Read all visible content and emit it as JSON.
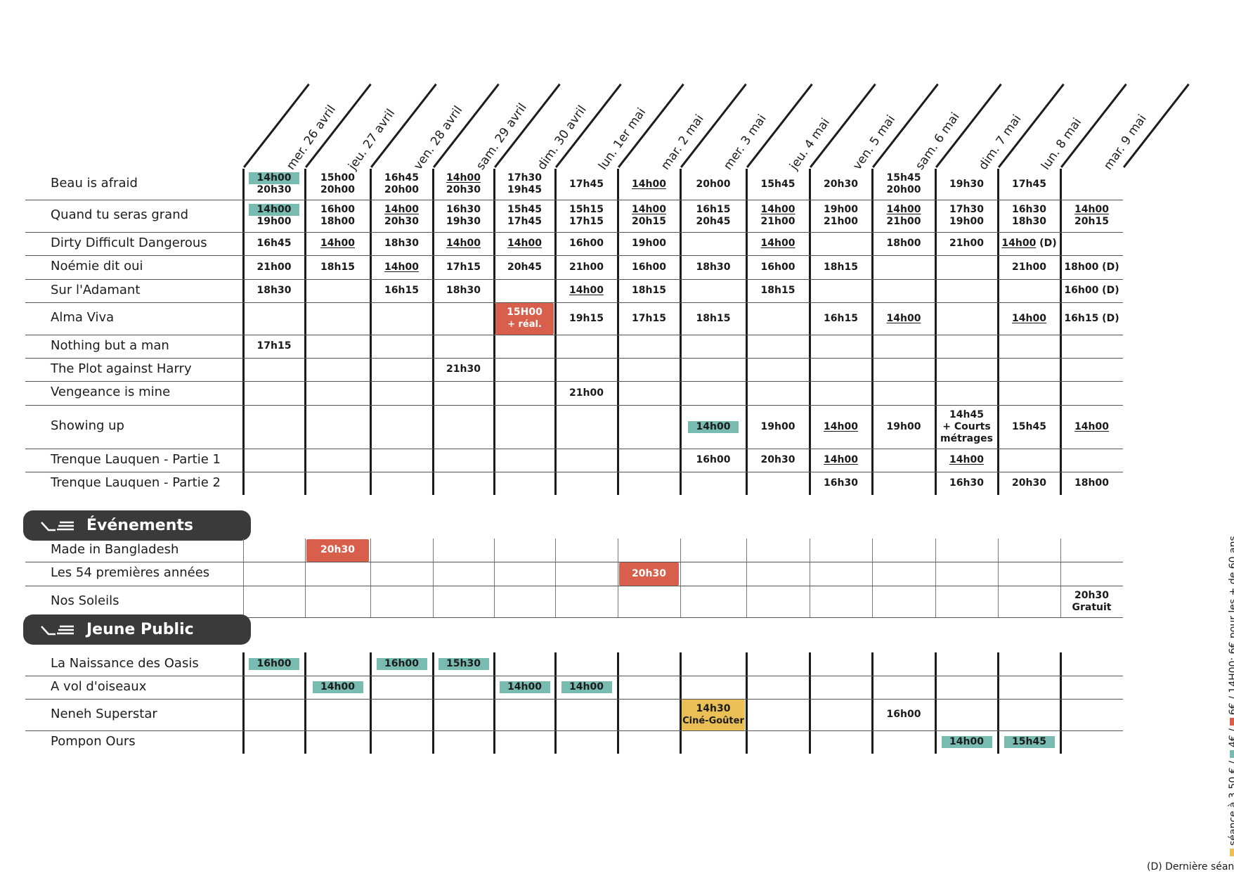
{
  "colors": {
    "teal": "#78bcb1",
    "red": "#d75f4c",
    "yellow": "#e9bf56",
    "dark": "#3a3a3a"
  },
  "dates": [
    "mer. 26 avril",
    "jeu. 27 avril",
    "ven. 28 avril",
    "sam. 29 avril",
    "dim. 30 avril",
    "lun. 1er mai",
    "mar. 2 mai",
    "mer. 3 mai",
    "jeu. 4 mai",
    "ven. 5 mai",
    "sam. 6 mai",
    "dim. 7 mai",
    "lun. 8 mai",
    "mar. 9 mai"
  ],
  "sections": [
    {
      "title": "",
      "icon": "",
      "films": [
        {
          "title": "Beau is afraid",
          "cells": [
            [
              {
                "t": "14h00",
                "hl": "teal"
              },
              {
                "t": "20h30"
              }
            ],
            [
              {
                "t": "15h00"
              },
              {
                "t": "20h00"
              }
            ],
            [
              {
                "t": "16h45"
              },
              {
                "t": "20h00"
              }
            ],
            [
              {
                "t": "14h00",
                "u": true
              },
              {
                "t": "20h30"
              }
            ],
            [
              {
                "t": "17h30"
              },
              {
                "t": "19h45"
              }
            ],
            [
              {
                "t": "17h45"
              }
            ],
            [
              {
                "t": "14h00",
                "u": true
              }
            ],
            [
              {
                "t": "20h00"
              }
            ],
            [
              {
                "t": "15h45"
              }
            ],
            [
              {
                "t": "20h30"
              }
            ],
            [
              {
                "t": "15h45"
              },
              {
                "t": "20h00"
              }
            ],
            [
              {
                "t": "19h30"
              }
            ],
            [
              {
                "t": "17h45"
              }
            ],
            []
          ]
        },
        {
          "title": "Quand tu seras grand",
          "cells": [
            [
              {
                "t": "14h00",
                "hl": "teal"
              },
              {
                "t": "19h00"
              }
            ],
            [
              {
                "t": "16h00"
              },
              {
                "t": "18h00"
              }
            ],
            [
              {
                "t": "14h00",
                "u": true
              },
              {
                "t": "20h30"
              }
            ],
            [
              {
                "t": "16h30"
              },
              {
                "t": "19h30"
              }
            ],
            [
              {
                "t": "15h45"
              },
              {
                "t": "17h45"
              }
            ],
            [
              {
                "t": "15h15"
              },
              {
                "t": "17h15"
              }
            ],
            [
              {
                "t": "14h00",
                "u": true
              },
              {
                "t": "20h15"
              }
            ],
            [
              {
                "t": "16h15"
              },
              {
                "t": "20h45"
              }
            ],
            [
              {
                "t": "14h00",
                "u": true
              },
              {
                "t": "21h00"
              }
            ],
            [
              {
                "t": "19h00"
              },
              {
                "t": "21h00"
              }
            ],
            [
              {
                "t": "14h00",
                "u": true
              },
              {
                "t": "21h00"
              }
            ],
            [
              {
                "t": "17h30"
              },
              {
                "t": "19h00"
              }
            ],
            [
              {
                "t": "16h30"
              },
              {
                "t": "18h30"
              }
            ],
            [
              {
                "t": "14h00",
                "u": true
              },
              {
                "t": "20h15"
              }
            ]
          ]
        },
        {
          "title": "Dirty Difficult Dangerous",
          "cells": [
            [
              {
                "t": "16h45"
              }
            ],
            [
              {
                "t": "14h00",
                "u": true
              }
            ],
            [
              {
                "t": "18h30"
              }
            ],
            [
              {
                "t": "14h00",
                "u": true
              }
            ],
            [
              {
                "t": "14h00",
                "u": true
              }
            ],
            [
              {
                "t": "16h00"
              }
            ],
            [
              {
                "t": "19h00"
              }
            ],
            [],
            [
              {
                "t": "14h00",
                "u": true
              }
            ],
            [],
            [
              {
                "t": "18h00"
              }
            ],
            [
              {
                "t": "21h00"
              }
            ],
            [
              {
                "t": "14h00",
                "u": true,
                "suffix": " (D)"
              }
            ],
            []
          ]
        },
        {
          "title": "Noémie dit oui",
          "cells": [
            [
              {
                "t": "21h00"
              }
            ],
            [
              {
                "t": "18h15"
              }
            ],
            [
              {
                "t": "14h00",
                "u": true
              }
            ],
            [
              {
                "t": "17h15"
              }
            ],
            [
              {
                "t": "20h45"
              }
            ],
            [
              {
                "t": "21h00"
              }
            ],
            [
              {
                "t": "16h00"
              }
            ],
            [
              {
                "t": "18h30"
              }
            ],
            [
              {
                "t": "16h00"
              }
            ],
            [
              {
                "t": "18h15"
              }
            ],
            [],
            [],
            [
              {
                "t": "21h00"
              }
            ],
            [
              {
                "t": "18h00 (D)"
              }
            ]
          ]
        },
        {
          "title": "Sur l'Adamant",
          "cells": [
            [
              {
                "t": "18h30"
              }
            ],
            [],
            [
              {
                "t": "16h15"
              }
            ],
            [
              {
                "t": "18h30"
              }
            ],
            [],
            [
              {
                "t": "14h00",
                "u": true
              }
            ],
            [
              {
                "t": "18h15"
              }
            ],
            [],
            [
              {
                "t": "18h15"
              }
            ],
            [],
            [],
            [],
            [],
            [
              {
                "t": "16h00 (D)"
              }
            ]
          ]
        },
        {
          "title": "Alma Viva",
          "cells": [
            [],
            [],
            [],
            [],
            [
              {
                "t": "15H00",
                "fill": "red"
              },
              {
                "t": "+ réal.",
                "fill": "red"
              }
            ],
            [
              {
                "t": "19h15"
              }
            ],
            [
              {
                "t": "17h15"
              }
            ],
            [
              {
                "t": "18h15"
              }
            ],
            [],
            [
              {
                "t": "16h15"
              }
            ],
            [
              {
                "t": "14h00",
                "u": true
              }
            ],
            [],
            [
              {
                "t": "14h00",
                "u": true
              }
            ],
            [
              {
                "t": "16h15 (D)"
              }
            ]
          ]
        },
        {
          "title": "Nothing but a man",
          "cells": [
            [
              {
                "t": "17h15"
              }
            ],
            [],
            [],
            [],
            [],
            [],
            [],
            [],
            [],
            [],
            [],
            [],
            [],
            []
          ]
        },
        {
          "title": "The Plot against Harry",
          "cells": [
            [],
            [],
            [],
            [
              {
                "t": "21h30"
              }
            ],
            [],
            [],
            [],
            [],
            [],
            [],
            [],
            [],
            [],
            []
          ]
        },
        {
          "title": "Vengeance is mine",
          "cells": [
            [],
            [],
            [],
            [],
            [],
            [
              {
                "t": "21h00"
              }
            ],
            [],
            [],
            [],
            [],
            [],
            [],
            [],
            []
          ]
        },
        {
          "title": "Showing up",
          "cells": [
            [],
            [],
            [],
            [],
            [],
            [],
            [],
            [
              {
                "t": "14h00",
                "hl": "teal"
              }
            ],
            [
              {
                "t": "19h00"
              }
            ],
            [
              {
                "t": "14h00",
                "u": true
              }
            ],
            [
              {
                "t": "19h00"
              }
            ],
            [
              {
                "t": "14h45"
              },
              {
                "t": "+ Courts"
              },
              {
                "t": "métrages"
              }
            ],
            [
              {
                "t": "15h45"
              }
            ],
            [
              {
                "t": "14h00",
                "u": true
              }
            ]
          ]
        },
        {
          "title": "Trenque Lauquen - Partie 1",
          "cells": [
            [],
            [],
            [],
            [],
            [],
            [],
            [],
            [
              {
                "t": "16h00"
              }
            ],
            [
              {
                "t": "20h30"
              }
            ],
            [
              {
                "t": "14h00",
                "u": true
              }
            ],
            [],
            [
              {
                "t": "14h00",
                "u": true
              }
            ],
            [],
            []
          ]
        },
        {
          "title": "Trenque Lauquen - Partie 2",
          "cells": [
            [],
            [],
            [],
            [],
            [],
            [],
            [],
            [],
            [],
            [
              {
                "t": "16h30"
              }
            ],
            [],
            [
              {
                "t": "16h30"
              }
            ],
            [
              {
                "t": "20h30"
              }
            ],
            [
              {
                "t": "18h00"
              }
            ]
          ]
        }
      ]
    },
    {
      "title": "Événements",
      "icon": "projector-icon",
      "films": [
        {
          "title": "Made in Bangladesh",
          "cells": [
            [],
            [
              {
                "t": "20h30",
                "fill": "red"
              }
            ],
            [],
            [],
            [],
            [],
            [],
            [],
            [],
            [],
            [],
            [],
            [],
            []
          ]
        },
        {
          "title": "Les 54 premières années",
          "cells": [
            [],
            [],
            [],
            [],
            [],
            [],
            [
              {
                "t": "20h30",
                "fill": "red"
              }
            ],
            [],
            [],
            [],
            [],
            [],
            [],
            []
          ]
        },
        {
          "title": "Nos Soleils",
          "cells": [
            [],
            [],
            [],
            [],
            [],
            [],
            [],
            [],
            [],
            [],
            [],
            [],
            [],
            [
              {
                "t": "20h30"
              },
              {
                "t": "Gratuit"
              }
            ]
          ]
        }
      ]
    },
    {
      "title": "Jeune Public",
      "icon": "projector-icon",
      "films": [
        {
          "title": "La Naissance des Oasis",
          "cells": [
            [
              {
                "t": "16h00",
                "hl": "teal"
              }
            ],
            [],
            [
              {
                "t": "16h00",
                "hl": "teal"
              }
            ],
            [
              {
                "t": "15h30",
                "hl": "teal"
              }
            ],
            [],
            [],
            [],
            [],
            [],
            [],
            [],
            [],
            [],
            []
          ]
        },
        {
          "title": "A vol d'oiseaux",
          "cells": [
            [],
            [
              {
                "t": "14h00",
                "hl": "teal"
              }
            ],
            [],
            [],
            [
              {
                "t": "14h00",
                "hl": "teal"
              }
            ],
            [
              {
                "t": "14h00",
                "hl": "teal"
              }
            ],
            [],
            [],
            [],
            [],
            [],
            [],
            [],
            []
          ]
        },
        {
          "title": "Neneh Superstar",
          "cells": [
            [],
            [],
            [],
            [],
            [],
            [],
            [],
            [
              {
                "t": "14h30",
                "fill": "yellow"
              },
              {
                "t": "Ciné-Goûter",
                "fill": "yellow"
              }
            ],
            [],
            [],
            [
              {
                "t": "16h00"
              }
            ],
            [],
            [],
            []
          ]
        },
        {
          "title": "Pompon Ours",
          "cells": [
            [],
            [],
            [],
            [],
            [],
            [],
            [],
            [],
            [],
            [],
            [],
            [
              {
                "t": "14h00",
                "hl": "teal"
              }
            ],
            [
              {
                "t": "15h45",
                "hl": "teal"
              }
            ],
            []
          ]
        }
      ]
    }
  ],
  "legend": {
    "yellow_text": "séance à 3.50 € /",
    "teal_text": "4€ /",
    "red_text": "6€ /",
    "price_underlined": "14H00",
    "price_suffix": ": 6€ pour les + de 60 ans",
    "last_show": "(D) Dernière séance"
  }
}
